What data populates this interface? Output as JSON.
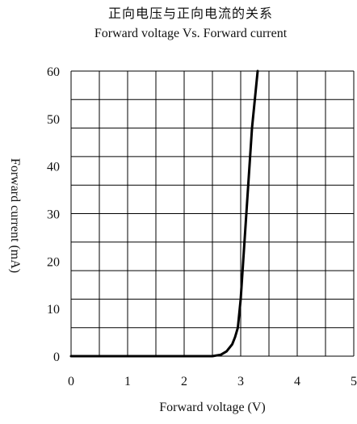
{
  "chart_data": {
    "type": "line",
    "title": "正向电压与正向电流的关系",
    "subtitle": "Forward voltage Vs. Forward current",
    "xlabel": "Forward voltage (V)",
    "ylabel": "Forward current (mA)",
    "xlim": [
      0,
      5
    ],
    "ylim": [
      0,
      60
    ],
    "x_ticks": [
      "0",
      "1",
      "2",
      "3",
      "4",
      "5"
    ],
    "y_ticks": [
      "0",
      "10",
      "20",
      "30",
      "40",
      "50",
      "60"
    ],
    "grid": true,
    "legend": "none",
    "line_color": "#000000",
    "series": [
      {
        "x": [
          0,
          1,
          2,
          2.5,
          2.65,
          2.75,
          2.85,
          2.9,
          2.95,
          3.0,
          3.1,
          3.2,
          3.3
        ],
        "values": [
          0,
          0,
          0,
          0,
          0.3,
          1,
          2.5,
          4,
          6,
          12,
          30,
          48,
          60
        ]
      }
    ]
  }
}
